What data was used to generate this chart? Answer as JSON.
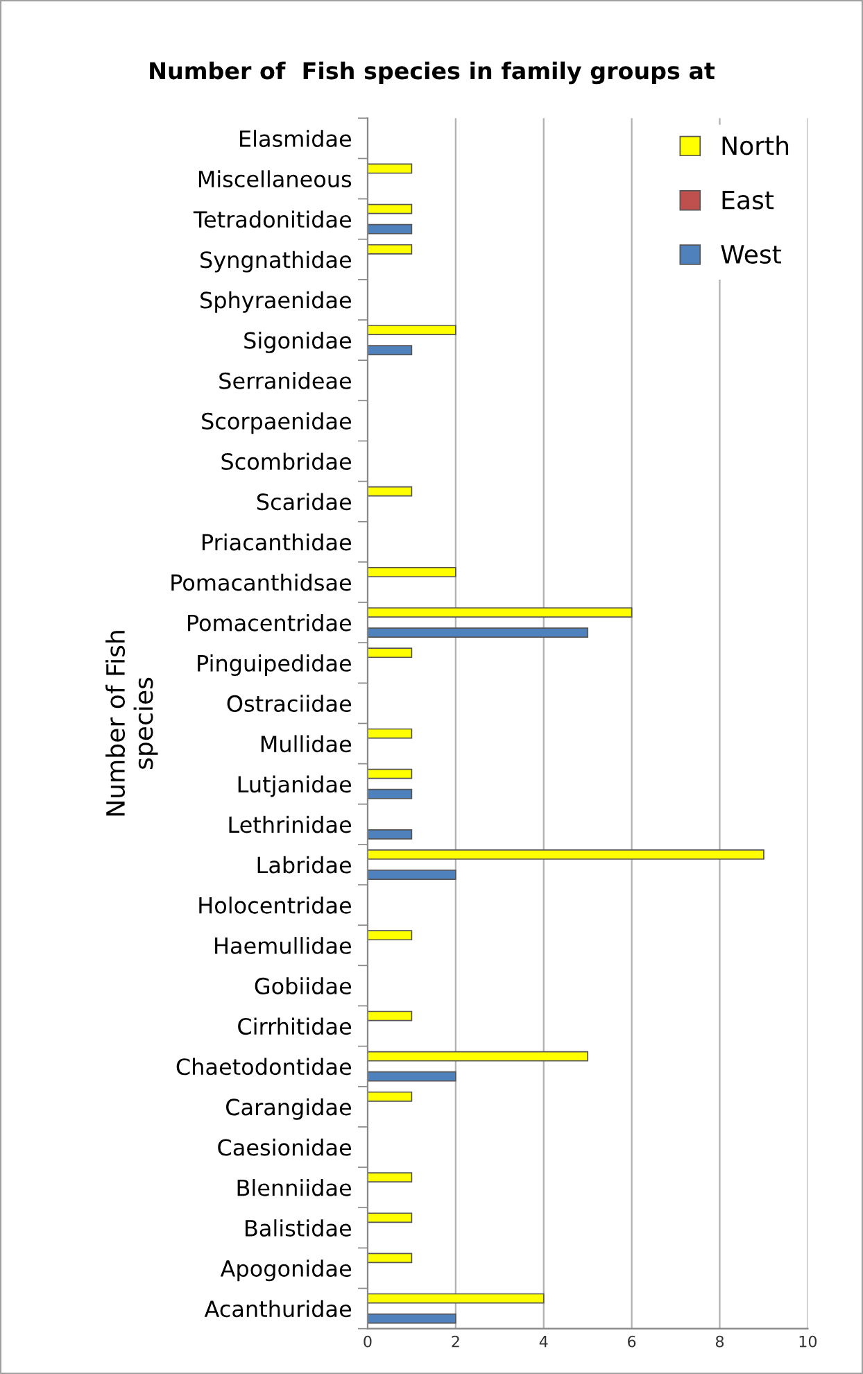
{
  "chart_data": {
    "type": "bar",
    "orientation": "horizontal",
    "title": "Number of  Fish species in family groups at",
    "ylabel": "Number of Fish\nspecies",
    "categories": [
      "Elasmidae",
      "Miscellaneous",
      "Tetradonitidae",
      "Syngnathidae",
      "Sphyraenidae",
      "Sigonidae",
      "Serranideae",
      "Scorpaenidae",
      "Scombridae",
      "Scaridae",
      "Priacanthidae",
      "Pomacanthidsae",
      "Pomacentridae",
      "Pinguipedidae",
      "Ostraciidae",
      "Mullidae",
      "Lutjanidae",
      "Lethrinidae",
      "Labridae",
      "Holocentridae",
      "Haemullidae",
      "Gobiidae",
      "Cirrhitidae",
      "Chaetodontidae",
      "Carangidae",
      "Caesionidae",
      "Blenniidae",
      "Balistidae",
      "Apogonidae",
      "Acanthuridae"
    ],
    "series": [
      {
        "name": "North",
        "color": "#ffff00",
        "values": [
          0,
          1,
          1,
          1,
          0,
          2,
          0,
          0,
          0,
          1,
          0,
          2,
          6,
          1,
          0,
          1,
          1,
          0,
          9,
          0,
          1,
          0,
          1,
          5,
          1,
          0,
          1,
          1,
          1,
          4
        ]
      },
      {
        "name": "East",
        "color": "#c0504d",
        "values": [
          0,
          0,
          0,
          0,
          0,
          0,
          0,
          0,
          0,
          0,
          0,
          0,
          0,
          0,
          0,
          0,
          0,
          0,
          0,
          0,
          0,
          0,
          0,
          0,
          0,
          0,
          0,
          0,
          0,
          0
        ]
      },
      {
        "name": "West",
        "color": "#4f81bd",
        "values": [
          0,
          0,
          1,
          0,
          0,
          1,
          0,
          0,
          0,
          0,
          0,
          0,
          5,
          0,
          0,
          0,
          1,
          1,
          2,
          0,
          0,
          0,
          0,
          2,
          0,
          0,
          0,
          0,
          0,
          2
        ]
      }
    ],
    "xlim": [
      0,
      10
    ],
    "xticks": [
      0,
      2,
      4,
      6,
      8,
      10
    ],
    "grid": "x",
    "legend": "top right"
  }
}
